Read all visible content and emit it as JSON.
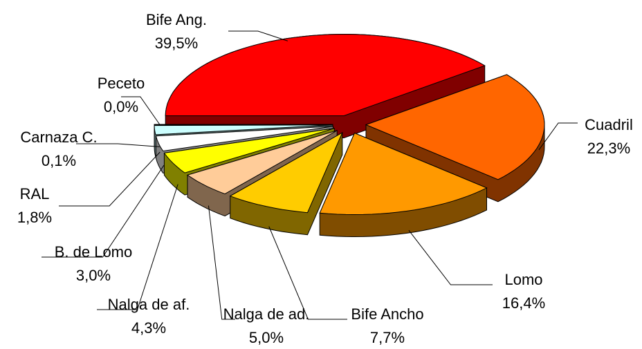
{
  "chart_data": {
    "type": "pie3d",
    "categories": [
      "Bife Ang.",
      "Cuadril",
      "Lomo",
      "Bife Ancho",
      "Nalga de ad.",
      "Nalga de af.",
      "B. de Lomo",
      "RAL",
      "Carnaza C.",
      "Peceto"
    ],
    "values": [
      39.5,
      22.3,
      16.4,
      7.7,
      5.0,
      4.3,
      3.0,
      1.8,
      0.1,
      0.0
    ],
    "value_labels": [
      "39,5%",
      "22,3%",
      "16,4%",
      "7,7%",
      "5,0%",
      "4,3%",
      "3,0%",
      "1,8%",
      "0,1%",
      "0,0%"
    ],
    "colors": [
      "#ff0000",
      "#ff6600",
      "#ff9900",
      "#ffcc00",
      "#ffcc99",
      "#ffff00",
      "#ffffff",
      "#ccffff",
      "#ccffff",
      "#99ccff"
    ]
  }
}
